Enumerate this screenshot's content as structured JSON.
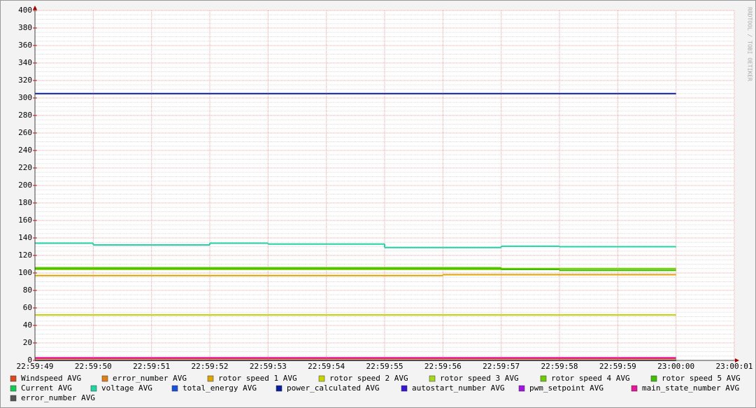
{
  "chart_data": {
    "type": "line",
    "step": true,
    "grid": true,
    "watermark": "RRDTOOL / TOBI OETIKER",
    "x": [
      "22:59:49",
      "22:59:50",
      "22:59:51",
      "22:59:52",
      "22:59:53",
      "22:59:54",
      "22:59:55",
      "22:59:56",
      "22:59:57",
      "22:59:58",
      "22:59:59",
      "23:00:00",
      "23:00:01"
    ],
    "ylim": [
      0,
      400
    ],
    "yticks": [
      0,
      20,
      40,
      60,
      80,
      100,
      120,
      140,
      160,
      180,
      200,
      220,
      240,
      260,
      280,
      300,
      320,
      340,
      360,
      380,
      400
    ],
    "series": [
      {
        "name": "Windspeed AVG",
        "color": "#d84a1e",
        "values": [
          2,
          2,
          2,
          2,
          2,
          2,
          2,
          2,
          2,
          2,
          2,
          null,
          null
        ]
      },
      {
        "name": "error_number AVG",
        "color": "#e07f18",
        "values": [
          0,
          0,
          0,
          0,
          0,
          0,
          0,
          0,
          0,
          0,
          0,
          null,
          null
        ]
      },
      {
        "name": "rotor speed 1 AVG",
        "color": "#e0a400",
        "values": [
          97,
          97,
          97,
          97,
          97,
          97,
          97,
          98,
          98,
          98,
          98,
          null,
          null
        ]
      },
      {
        "name": "rotor speed 2 AVG",
        "color": "#c8d400",
        "values": [
          52,
          52,
          52,
          52,
          52,
          52,
          52,
          52,
          52,
          52,
          52,
          null,
          null
        ]
      },
      {
        "name": "rotor speed 3 AVG",
        "color": "#a4d81c",
        "values": [
          104,
          104,
          104,
          104,
          104,
          104,
          104,
          104,
          104,
          103,
          103,
          null,
          null
        ]
      },
      {
        "name": "rotor speed 4 AVG",
        "color": "#6ccc00",
        "values": [
          106,
          106,
          106,
          106,
          106,
          106,
          106,
          106,
          105,
          105,
          105,
          null,
          null
        ]
      },
      {
        "name": "rotor speed 5 AVG",
        "color": "#3cc000",
        "values": [
          105,
          105,
          105,
          105,
          105,
          105,
          105,
          105,
          104,
          103,
          103,
          null,
          null
        ]
      },
      {
        "name": "Current AVG",
        "color": "#10cc50",
        "values": [
          0,
          0,
          0,
          0,
          0,
          0,
          0,
          0,
          0,
          0,
          0,
          null,
          null
        ]
      },
      {
        "name": "voltage AVG",
        "color": "#20d4a4",
        "values": [
          134,
          132,
          132,
          134,
          133,
          133,
          129,
          129,
          130.5,
          130,
          130,
          null,
          null
        ]
      },
      {
        "name": "total_energy AVG",
        "color": "#1a50dc",
        "values": [
          0,
          0,
          0,
          0,
          0,
          0,
          0,
          0,
          0,
          0,
          0,
          null,
          null
        ]
      },
      {
        "name": "power_calculated AVG",
        "color": "#0c1ea0",
        "values": [
          305,
          305,
          305,
          305,
          305,
          305,
          305,
          305,
          305,
          305,
          305,
          null,
          null
        ]
      },
      {
        "name": "autostart_number AVG",
        "color": "#3a14d4",
        "values": [
          0,
          0,
          0,
          0,
          0,
          0,
          0,
          0,
          0,
          0,
          0,
          null,
          null
        ]
      },
      {
        "name": "pwm_setpoint AVG",
        "color": "#a414e0",
        "values": [
          0,
          0,
          0,
          0,
          0,
          0,
          0,
          0,
          0,
          0,
          0,
          null,
          null
        ]
      },
      {
        "name": "main_state_number AVG",
        "color": "#e8149c",
        "values": [
          3,
          3,
          3,
          3,
          3,
          3,
          3,
          3,
          3,
          3,
          3,
          null,
          null
        ]
      },
      {
        "name": "error_number AVG",
        "color": "#555555",
        "values": [
          0,
          0,
          0,
          0,
          0,
          0,
          0,
          0,
          0,
          0,
          0,
          null,
          null
        ]
      }
    ]
  }
}
